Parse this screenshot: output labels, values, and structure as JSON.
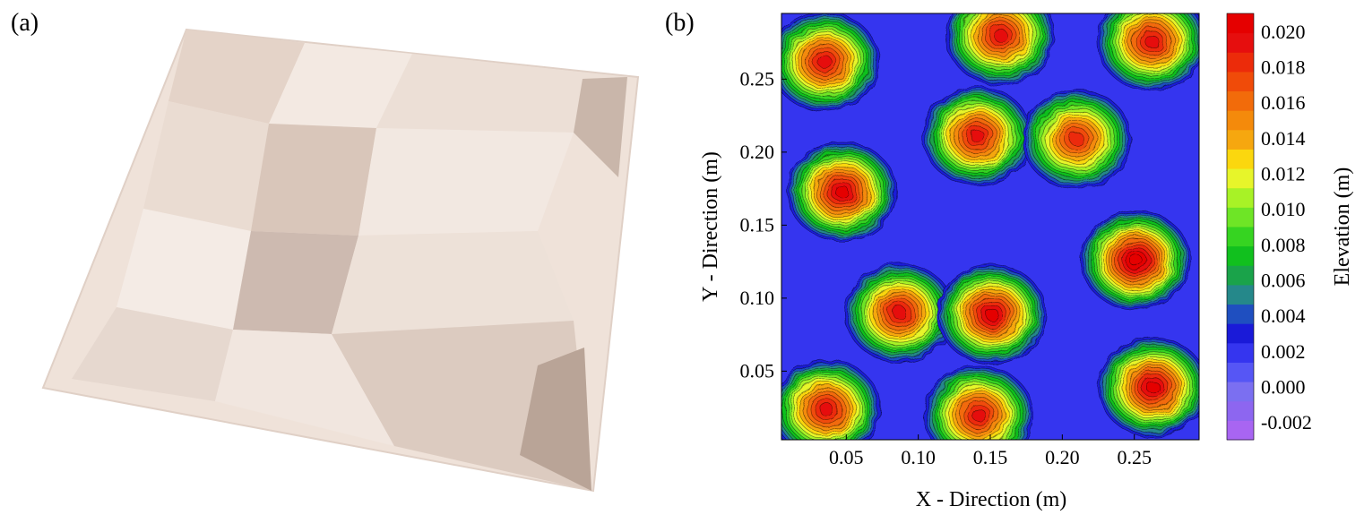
{
  "panels": {
    "a": "(a)",
    "b": "(b)"
  },
  "chart_data": {
    "type": "heatmap",
    "subtype": "filled contour map",
    "xlabel": "X - Direction (m)",
    "ylabel": "Y - Direction (m)",
    "colorbar_label": "Elevation (m)",
    "xlim": [
      0.005,
      0.295
    ],
    "ylim": [
      0.003,
      0.295
    ],
    "xticks": [
      0.05,
      0.1,
      0.15,
      0.2,
      0.25
    ],
    "xtick_labels": [
      "0.05",
      "0.10",
      "0.15",
      "0.20",
      "0.25"
    ],
    "yticks": [
      0.05,
      0.1,
      0.15,
      0.2,
      0.25
    ],
    "ytick_labels": [
      "0.05",
      "0.10",
      "0.15",
      "0.20",
      "0.25"
    ],
    "colorbar": {
      "min": -0.003,
      "max": 0.021,
      "step": 0.001,
      "tick_values": [
        0.02,
        0.018,
        0.016,
        0.014,
        0.012,
        0.01,
        0.008,
        0.006,
        0.004,
        0.002,
        0.0,
        -0.002
      ],
      "tick_labels": [
        "0.020",
        "0.018",
        "0.016",
        "0.014",
        "0.012",
        "0.010",
        "0.008",
        "0.006",
        "0.004",
        "0.002",
        "0.000",
        "-0.002"
      ],
      "colors": [
        "#a865f2",
        "#8d66f0",
        "#7b6ff1",
        "#5656f5",
        "#3535ef",
        "#1a1ad8",
        "#1f4fc0",
        "#25888a",
        "#1aa34a",
        "#11c01e",
        "#36d421",
        "#6ee526",
        "#a8f226",
        "#e7f52a",
        "#fbd70e",
        "#f6a70f",
        "#f48a0b",
        "#f26b0a",
        "#f04b09",
        "#ec2b0a",
        "#e60e0e",
        "#e50000"
      ]
    },
    "peaks": [
      {
        "x": 0.035,
        "y": 0.262,
        "z": 0.017
      },
      {
        "x": 0.157,
        "y": 0.28,
        "z": 0.017
      },
      {
        "x": 0.262,
        "y": 0.276,
        "z": 0.017
      },
      {
        "x": 0.047,
        "y": 0.173,
        "z": 0.018
      },
      {
        "x": 0.141,
        "y": 0.211,
        "z": 0.017
      },
      {
        "x": 0.21,
        "y": 0.209,
        "z": 0.016
      },
      {
        "x": 0.087,
        "y": 0.09,
        "z": 0.017
      },
      {
        "x": 0.151,
        "y": 0.089,
        "z": 0.018
      },
      {
        "x": 0.251,
        "y": 0.126,
        "z": 0.019
      },
      {
        "x": 0.036,
        "y": 0.024,
        "z": 0.017
      },
      {
        "x": 0.142,
        "y": 0.02,
        "z": 0.017
      },
      {
        "x": 0.263,
        "y": 0.039,
        "z": 0.018
      }
    ],
    "background_elevation": 0.001
  },
  "photo": {
    "description_colors": {
      "tile": "#efe3da",
      "shadow": "#c8b8ae",
      "light": "#f7efe9"
    }
  }
}
